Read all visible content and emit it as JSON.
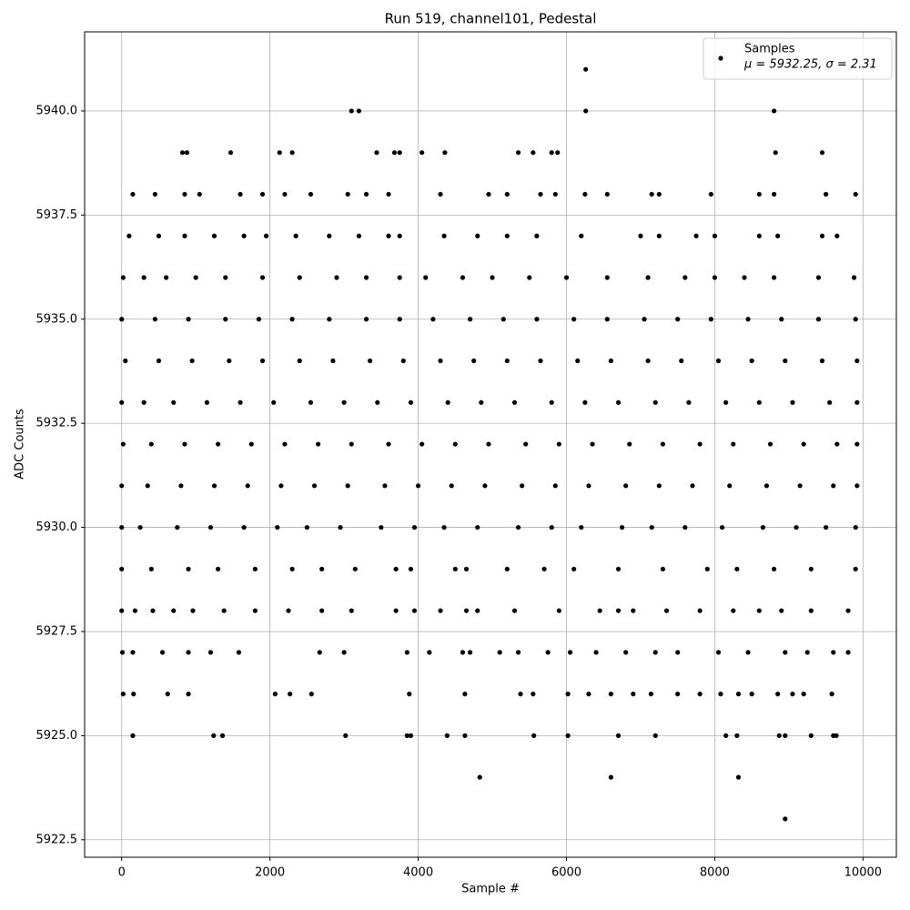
{
  "chart_data": {
    "type": "scatter",
    "title": "Run 519, channel101, Pedestal",
    "xlabel": "Sample #",
    "ylabel": "ADC Counts",
    "xlim": [
      -500,
      10450
    ],
    "ylim": [
      5922.08,
      5941.9
    ],
    "xticks": [
      0,
      2000,
      4000,
      6000,
      8000,
      10000
    ],
    "yticks": [
      5922.5,
      {
        "value": 5925,
        "label": "5925.0"
      },
      5927.5,
      {
        "value": 5930,
        "label": "5930.0"
      },
      5932.5,
      {
        "value": 5935,
        "label": "5935.0"
      },
      5937.5,
      {
        "value": 5940,
        "label": "5940.0"
      }
    ],
    "grid": true,
    "legend_loc": "upper right",
    "legend_note": "μ = 5932.25, σ = 2.31",
    "series": [
      {
        "name": "Samples",
        "color": "#000000",
        "x": [
          0,
          450,
          900,
          1400,
          1850,
          2300,
          2800,
          3300,
          3750,
          4200,
          4700,
          5150,
          5600,
          6100,
          6550,
          7050,
          7500,
          7950,
          8450,
          8900,
          9400,
          9900,
          50,
          500,
          950,
          1450,
          1900,
          2400,
          2850,
          3350,
          3800,
          4300,
          4750,
          5200,
          5650,
          6150,
          6600,
          7100,
          7550,
          8050,
          8500,
          8950,
          9450,
          9920,
          0,
          300,
          700,
          1150,
          1600,
          2050,
          2550,
          3000,
          3450,
          3900,
          4400,
          4850,
          5300,
          5800,
          6250,
          6700,
          7200,
          7650,
          8150,
          8600,
          9050,
          9550,
          9920,
          20,
          400,
          850,
          1300,
          1750,
          2200,
          2650,
          3100,
          3600,
          4050,
          4500,
          4950,
          5450,
          5900,
          6350,
          6850,
          7300,
          7800,
          8250,
          8750,
          9200,
          9650,
          9920,
          0,
          350,
          800,
          1250,
          1700,
          2150,
          2600,
          3050,
          3550,
          4000,
          4450,
          4900,
          5400,
          5850,
          6300,
          6800,
          7250,
          7700,
          8200,
          8700,
          9150,
          9600,
          9920,
          0,
          250,
          750,
          1200,
          1650,
          2100,
          2500,
          2950,
          3500,
          3950,
          4350,
          4800,
          5350,
          5800,
          6200,
          6750,
          7150,
          7600,
          8100,
          8650,
          9100,
          9500,
          9900,
          0,
          400,
          900,
          1300,
          1800,
          2300,
          2700,
          3150,
          3700,
          3900,
          4500,
          4650,
          5200,
          5700,
          6100,
          6700,
          7300,
          7900,
          8300,
          8800,
          9300,
          9900,
          20,
          300,
          600,
          1000,
          1400,
          1900,
          2400,
          2900,
          3300,
          3750,
          4100,
          4600,
          5000,
          5500,
          6000,
          6550,
          7100,
          7600,
          8000,
          8400,
          8800,
          9400,
          9880,
          100,
          500,
          850,
          1250,
          1650,
          1950,
          2350,
          2800,
          3200,
          3600,
          3750,
          4350,
          4800,
          5200,
          5600,
          6200,
          7000,
          7250,
          7750,
          8000,
          8600,
          8850,
          9450,
          9650,
          150,
          450,
          850,
          1050,
          1600,
          1900,
          2200,
          2550,
          3050,
          3300,
          3600,
          4300,
          4950,
          5200,
          5650,
          5850,
          6250,
          6550,
          7150,
          7250,
          7950,
          8600,
          8800,
          9500,
          9900,
          820,
          880,
          1470,
          2130,
          2300,
          3440,
          3680,
          3750,
          4050,
          4360,
          5350,
          5550,
          5800,
          5880,
          9450,
          8820,
          3100,
          3200,
          6260,
          8800,
          6260,
          0,
          180,
          420,
          700,
          960,
          1380,
          1800,
          2250,
          2700,
          3100,
          3700,
          3950,
          4300,
          4650,
          4800,
          5300,
          5900,
          6450,
          6700,
          6900,
          7350,
          7800,
          8250,
          8600,
          8900,
          9300,
          9800,
          10,
          150,
          550,
          900,
          1200,
          1580,
          2670,
          3000,
          3850,
          4150,
          4600,
          4700,
          5100,
          5350,
          5750,
          6050,
          6400,
          6800,
          7200,
          7500,
          8050,
          8450,
          8950,
          9250,
          9600,
          9800,
          20,
          160,
          620,
          900,
          2070,
          2270,
          2560,
          3880,
          4630,
          5380,
          5550,
          6020,
          6300,
          6600,
          6900,
          7140,
          7500,
          7800,
          8080,
          8320,
          8500,
          8850,
          9050,
          9200,
          9580,
          150,
          1240,
          1360,
          3020,
          3850,
          3900,
          4390,
          4630,
          5560,
          6020,
          6700,
          7200,
          8150,
          8300,
          8870,
          8950,
          9300,
          9600,
          9640,
          4830,
          6600,
          8320,
          8950
        ],
        "values": [
          5935,
          5935,
          5935,
          5935,
          5935,
          5935,
          5935,
          5935,
          5935,
          5935,
          5935,
          5935,
          5935,
          5935,
          5935,
          5935,
          5935,
          5935,
          5935,
          5935,
          5935,
          5935,
          5934,
          5934,
          5934,
          5934,
          5934,
          5934,
          5934,
          5934,
          5934,
          5934,
          5934,
          5934,
          5934,
          5934,
          5934,
          5934,
          5934,
          5934,
          5934,
          5934,
          5934,
          5934,
          5933,
          5933,
          5933,
          5933,
          5933,
          5933,
          5933,
          5933,
          5933,
          5933,
          5933,
          5933,
          5933,
          5933,
          5933,
          5933,
          5933,
          5933,
          5933,
          5933,
          5933,
          5933,
          5933,
          5932,
          5932,
          5932,
          5932,
          5932,
          5932,
          5932,
          5932,
          5932,
          5932,
          5932,
          5932,
          5932,
          5932,
          5932,
          5932,
          5932,
          5932,
          5932,
          5932,
          5932,
          5932,
          5932,
          5931,
          5931,
          5931,
          5931,
          5931,
          5931,
          5931,
          5931,
          5931,
          5931,
          5931,
          5931,
          5931,
          5931,
          5931,
          5931,
          5931,
          5931,
          5931,
          5931,
          5931,
          5931,
          5931,
          5930,
          5930,
          5930,
          5930,
          5930,
          5930,
          5930,
          5930,
          5930,
          5930,
          5930,
          5930,
          5930,
          5930,
          5930,
          5930,
          5930,
          5930,
          5930,
          5930,
          5930,
          5930,
          5930,
          5929,
          5929,
          5929,
          5929,
          5929,
          5929,
          5929,
          5929,
          5929,
          5929,
          5929,
          5929,
          5929,
          5929,
          5929,
          5929,
          5929,
          5929,
          5929,
          5929,
          5929,
          5929,
          5936,
          5936,
          5936,
          5936,
          5936,
          5936,
          5936,
          5936,
          5936,
          5936,
          5936,
          5936,
          5936,
          5936,
          5936,
          5936,
          5936,
          5936,
          5936,
          5936,
          5936,
          5936,
          5936,
          5937,
          5937,
          5937,
          5937,
          5937,
          5937,
          5937,
          5937,
          5937,
          5937,
          5937,
          5937,
          5937,
          5937,
          5937,
          5937,
          5937,
          5937,
          5937,
          5937,
          5937,
          5937,
          5937,
          5937,
          5938,
          5938,
          5938,
          5938,
          5938,
          5938,
          5938,
          5938,
          5938,
          5938,
          5938,
          5938,
          5938,
          5938,
          5938,
          5938,
          5938,
          5938,
          5938,
          5938,
          5938,
          5938,
          5938,
          5938,
          5938,
          5939,
          5939,
          5939,
          5939,
          5939,
          5939,
          5939,
          5939,
          5939,
          5939,
          5939,
          5939,
          5939,
          5939,
          5939,
          5939,
          5940,
          5940,
          5940,
          5940,
          5941,
          5928,
          5928,
          5928,
          5928,
          5928,
          5928,
          5928,
          5928,
          5928,
          5928,
          5928,
          5928,
          5928,
          5928,
          5928,
          5928,
          5928,
          5928,
          5928,
          5928,
          5928,
          5928,
          5928,
          5928,
          5928,
          5928,
          5928,
          5927,
          5927,
          5927,
          5927,
          5927,
          5927,
          5927,
          5927,
          5927,
          5927,
          5927,
          5927,
          5927,
          5927,
          5927,
          5927,
          5927,
          5927,
          5927,
          5927,
          5927,
          5927,
          5927,
          5927,
          5927,
          5927,
          5926,
          5926,
          5926,
          5926,
          5926,
          5926,
          5926,
          5926,
          5926,
          5926,
          5926,
          5926,
          5926,
          5926,
          5926,
          5926,
          5926,
          5926,
          5926,
          5926,
          5926,
          5926,
          5926,
          5926,
          5926,
          5925,
          5925,
          5925,
          5925,
          5925,
          5925,
          5925,
          5925,
          5925,
          5925,
          5925,
          5925,
          5925,
          5925,
          5925,
          5925,
          5925,
          5925,
          5925,
          5924,
          5924,
          5924,
          5923
        ]
      }
    ]
  }
}
